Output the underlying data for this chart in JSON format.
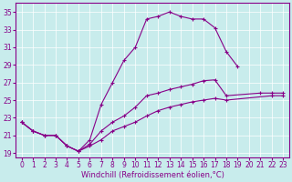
{
  "xlabel": "Windchill (Refroidissement éolien,°C)",
  "bg_color": "#c8ecec",
  "line_color": "#880088",
  "xlim_min": -0.5,
  "xlim_max": 23.5,
  "ylim_min": 18.5,
  "ylim_max": 36.0,
  "xticks": [
    0,
    1,
    2,
    3,
    4,
    5,
    6,
    7,
    8,
    9,
    10,
    11,
    12,
    13,
    14,
    15,
    16,
    17,
    18,
    19,
    20,
    21,
    22,
    23
  ],
  "yticks": [
    19,
    21,
    23,
    25,
    27,
    29,
    31,
    33,
    35
  ],
  "s1x": [
    0,
    1,
    2,
    3,
    4,
    5,
    6,
    7,
    8,
    9,
    10,
    11,
    12,
    13,
    14,
    15,
    16,
    17,
    18,
    19
  ],
  "s1y": [
    22.5,
    21.5,
    21.0,
    21.0,
    19.8,
    19.2,
    20.5,
    24.5,
    27.0,
    29.5,
    31.0,
    34.2,
    34.5,
    35.0,
    34.5,
    34.2,
    34.2,
    33.2,
    30.5,
    28.8
  ],
  "s2x": [
    0,
    1,
    2,
    3,
    4,
    5,
    6,
    7,
    8,
    9,
    10,
    11,
    12,
    13,
    14,
    15,
    16,
    17,
    18,
    21,
    22,
    23
  ],
  "s2y": [
    22.5,
    21.5,
    21.0,
    21.0,
    19.8,
    19.2,
    20.0,
    21.5,
    22.5,
    23.2,
    24.2,
    25.5,
    25.8,
    26.2,
    26.5,
    26.8,
    27.2,
    27.3,
    25.5,
    25.8,
    25.8,
    25.8
  ],
  "s3x": [
    0,
    1,
    2,
    3,
    4,
    5,
    6,
    7,
    8,
    9,
    10,
    11,
    12,
    13,
    14,
    15,
    16,
    17,
    18,
    22,
    23
  ],
  "s3y": [
    22.5,
    21.5,
    21.0,
    21.0,
    19.8,
    19.2,
    19.8,
    20.5,
    21.5,
    22.0,
    22.5,
    23.2,
    23.8,
    24.2,
    24.5,
    24.8,
    25.0,
    25.2,
    25.0,
    25.5,
    25.5
  ]
}
